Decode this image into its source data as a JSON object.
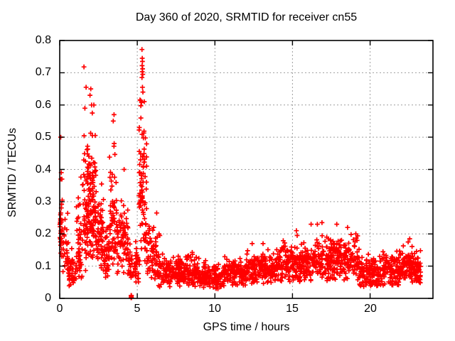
{
  "figure": {
    "background": "#ffffff",
    "text_color": "#000000",
    "border_color": "#000000",
    "grid_color": "#9e9e9e"
  },
  "chart_data": {
    "type": "scatter",
    "title": "Day 360 of 2020, SRMTID for receiver cn55",
    "xlabel": "GPS time / hours",
    "ylabel": "SRMTID / TECUs",
    "xlim": [
      0,
      24.05
    ],
    "ylim": [
      0,
      0.8
    ],
    "xticks": [
      0,
      5,
      10,
      15,
      20
    ],
    "xtick_labels": [
      "0",
      "5",
      "10",
      "15",
      "20"
    ],
    "yticks": [
      0,
      0.1,
      0.2,
      0.3,
      0.4,
      0.5,
      0.6,
      0.7,
      0.8
    ],
    "ytick_labels": [
      "0",
      "0.1",
      "0.2",
      "0.3",
      "0.4",
      "0.5",
      "0.6",
      "0.7",
      "0.8"
    ],
    "grid": {
      "visible": true,
      "style": "dotted",
      "axes": "both"
    },
    "legend": "none",
    "series": [
      {
        "name": "SRMTID",
        "marker": "plus",
        "color": "#ff0000",
        "seed": 1234567,
        "bands": [
          {
            "x0": 0.0,
            "x1": 0.18,
            "n": 30,
            "c": 0.2,
            "s": 0.08,
            "lo": 0.08,
            "hi": 0.39
          },
          {
            "x0": 0.18,
            "x1": 0.55,
            "n": 30,
            "c": 0.15,
            "s": 0.05,
            "lo": 0.07,
            "hi": 0.28
          },
          {
            "x0": 0.55,
            "x1": 1.05,
            "n": 42,
            "c": 0.085,
            "s": 0.03,
            "lo": 0.03,
            "hi": 0.16
          },
          {
            "x0": 1.05,
            "x1": 1.45,
            "n": 45,
            "c": 0.18,
            "s": 0.08,
            "lo": 0.06,
            "hi": 0.45
          },
          {
            "x0": 1.45,
            "x1": 1.8,
            "n": 52,
            "c": 0.27,
            "s": 0.11,
            "lo": 0.08,
            "hi": 0.56
          },
          {
            "x0": 1.8,
            "x1": 2.35,
            "n": 115,
            "c": 0.3,
            "s": 0.1,
            "lo": 0.12,
            "hi": 0.62
          },
          {
            "x0": 2.35,
            "x1": 2.85,
            "n": 55,
            "c": 0.2,
            "s": 0.07,
            "lo": 0.08,
            "hi": 0.4
          },
          {
            "x0": 2.85,
            "x1": 3.2,
            "n": 40,
            "c": 0.13,
            "s": 0.05,
            "lo": 0.06,
            "hi": 0.28
          },
          {
            "x0": 3.2,
            "x1": 3.7,
            "n": 58,
            "c": 0.25,
            "s": 0.11,
            "lo": 0.09,
            "hi": 0.52
          },
          {
            "x0": 3.7,
            "x1": 4.45,
            "n": 70,
            "c": 0.16,
            "s": 0.06,
            "lo": 0.07,
            "hi": 0.34
          },
          {
            "x0": 4.45,
            "x1": 5.1,
            "n": 52,
            "c": 0.1,
            "s": 0.035,
            "lo": 0.04,
            "hi": 0.19
          },
          {
            "x0": 5.1,
            "x1": 5.6,
            "n": 88,
            "c": 0.3,
            "s": 0.15,
            "lo": 0.1,
            "hi": 0.63
          },
          {
            "x0": 5.6,
            "x1": 6.3,
            "n": 62,
            "c": 0.135,
            "s": 0.05,
            "lo": 0.06,
            "hi": 0.3
          },
          {
            "x0": 6.3,
            "x1": 9.0,
            "n": 235,
            "c": 0.082,
            "s": 0.026,
            "lo": 0.035,
            "hi": 0.165
          },
          {
            "x0": 9.0,
            "x1": 10.6,
            "n": 140,
            "c": 0.066,
            "s": 0.02,
            "lo": 0.028,
            "hi": 0.125
          },
          {
            "x0": 10.6,
            "x1": 12.0,
            "n": 122,
            "c": 0.08,
            "s": 0.022,
            "lo": 0.04,
            "hi": 0.14
          },
          {
            "x0": 12.0,
            "x1": 14.0,
            "n": 172,
            "c": 0.09,
            "s": 0.025,
            "lo": 0.045,
            "hi": 0.16
          },
          {
            "x0": 14.0,
            "x1": 16.3,
            "n": 205,
            "c": 0.105,
            "s": 0.03,
            "lo": 0.05,
            "hi": 0.19
          },
          {
            "x0": 16.3,
            "x1": 19.3,
            "n": 262,
            "c": 0.12,
            "s": 0.032,
            "lo": 0.055,
            "hi": 0.21
          },
          {
            "x0": 19.3,
            "x1": 20.6,
            "n": 112,
            "c": 0.08,
            "s": 0.025,
            "lo": 0.035,
            "hi": 0.14
          },
          {
            "x0": 20.6,
            "x1": 22.1,
            "n": 132,
            "c": 0.085,
            "s": 0.027,
            "lo": 0.04,
            "hi": 0.15
          },
          {
            "x0": 22.1,
            "x1": 22.8,
            "n": 72,
            "c": 0.1,
            "s": 0.033,
            "lo": 0.05,
            "hi": 0.17
          },
          {
            "x0": 22.8,
            "x1": 23.25,
            "n": 52,
            "c": 0.09,
            "s": 0.03,
            "lo": 0.045,
            "hi": 0.16
          }
        ],
        "outliers": [
          [
            0.07,
            0.5
          ],
          [
            0.1,
            0.39
          ],
          [
            0.08,
            0.37
          ],
          [
            1.56,
            0.718
          ],
          [
            1.62,
            0.59
          ],
          [
            1.7,
            0.655
          ],
          [
            1.95,
            0.63
          ],
          [
            2.0,
            0.65
          ],
          [
            2.05,
            0.6
          ],
          [
            2.1,
            0.575
          ],
          [
            2.2,
            0.6
          ],
          [
            3.45,
            0.55
          ],
          [
            3.5,
            0.57
          ],
          [
            4.15,
            0.4
          ],
          [
            4.6,
            0.002
          ],
          [
            4.6,
            0.009
          ],
          [
            4.62,
            0.002
          ],
          [
            4.62,
            0.009
          ],
          [
            4.61,
            0.005
          ],
          [
            5.3,
            0.772
          ],
          [
            5.32,
            0.745
          ],
          [
            5.33,
            0.735
          ],
          [
            5.31,
            0.722
          ],
          [
            5.34,
            0.712
          ],
          [
            5.32,
            0.703
          ],
          [
            5.35,
            0.695
          ],
          [
            5.3,
            0.685
          ],
          [
            5.33,
            0.655
          ],
          [
            5.36,
            0.64
          ],
          [
            6.4,
            0.2
          ],
          [
            6.45,
            0.195
          ],
          [
            12.4,
            0.17
          ],
          [
            13.1,
            0.17
          ],
          [
            15.25,
            0.21
          ],
          [
            15.3,
            0.195
          ],
          [
            16.2,
            0.23
          ],
          [
            16.6,
            0.23
          ],
          [
            16.9,
            0.235
          ],
          [
            17.85,
            0.23
          ],
          [
            18.55,
            0.22
          ],
          [
            22.45,
            0.175
          ],
          [
            22.55,
            0.185
          ]
        ]
      }
    ]
  }
}
